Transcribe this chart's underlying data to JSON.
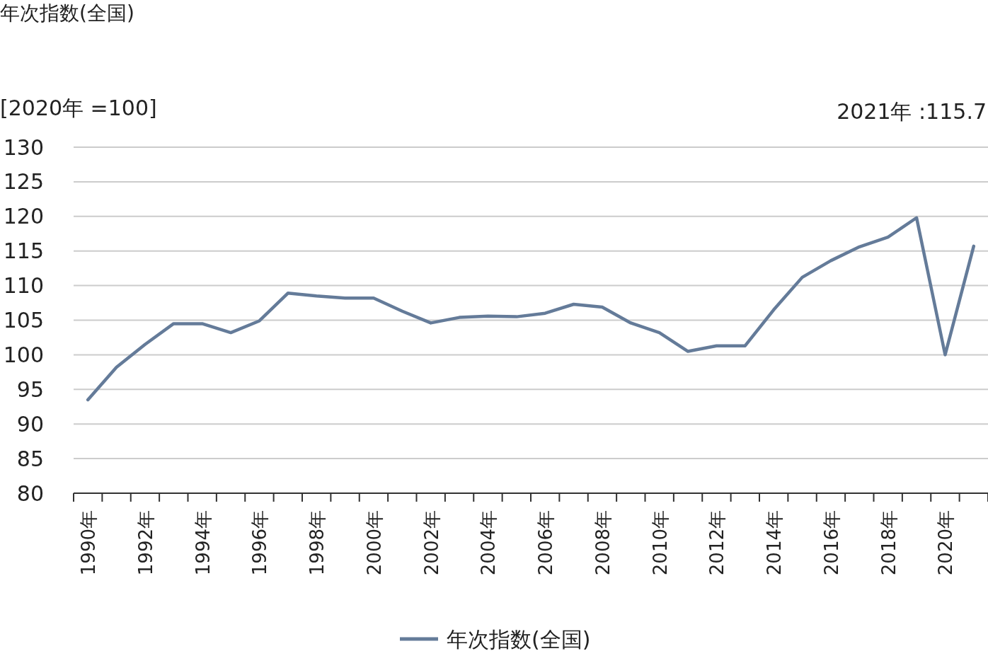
{
  "chart_data": {
    "type": "line",
    "title": "年次指数(全国)",
    "annotations": [
      "[2020年 =100]",
      "2021年 :115.7"
    ],
    "categories": [
      "1990年",
      null,
      "1992年",
      null,
      "1994年",
      null,
      "1996年",
      null,
      "1998年",
      null,
      "2000年",
      null,
      "2002年",
      null,
      "2004年",
      null,
      "2006年",
      null,
      "2008年",
      null,
      "2010年",
      null,
      "2012年",
      null,
      "2014年",
      null,
      "2016年",
      null,
      "2018年",
      null,
      "2020年",
      null
    ],
    "series": [
      {
        "name": "年次指数(全国)",
        "color": "#647b99",
        "values": [
          93.5,
          98.2,
          101.5,
          104.5,
          104.5,
          103.2,
          104.9,
          108.9,
          108.5,
          108.2,
          108.2,
          106.3,
          104.6,
          105.4,
          105.6,
          105.5,
          106.0,
          107.3,
          106.9,
          104.6,
          103.2,
          100.5,
          101.3,
          101.3,
          106.5,
          111.2,
          113.6,
          115.6,
          117.0,
          119.8,
          100,
          115.7
        ]
      }
    ],
    "ylim": [
      80,
      130
    ],
    "yticks": [
      80,
      85,
      90,
      95,
      100,
      105,
      110,
      115,
      120,
      125,
      130
    ],
    "grid": "y",
    "legend": "bottom",
    "marker": "none",
    "line_style": "solid"
  }
}
